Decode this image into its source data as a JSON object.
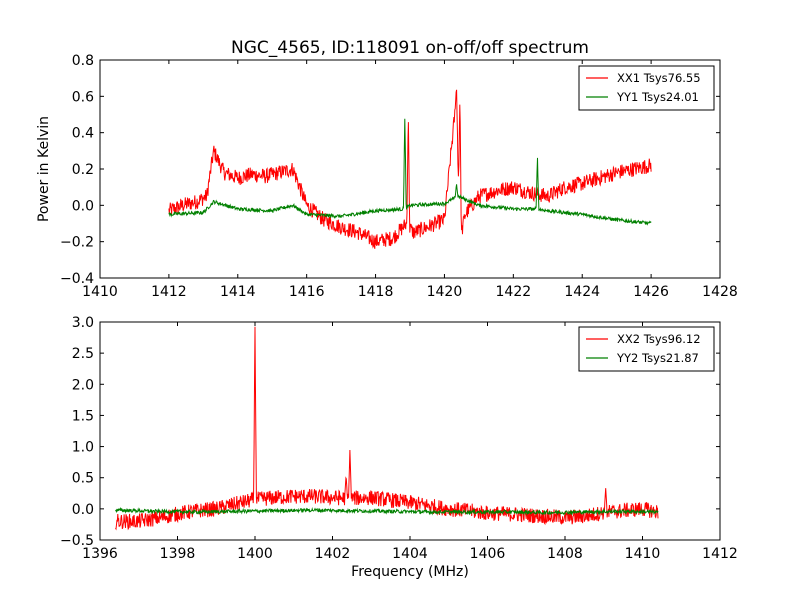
{
  "chart_data": [
    {
      "type": "line",
      "title": "NGC_4565, ID:118091 on-off/off spectrum",
      "xlabel": "",
      "ylabel": "Power in Kelvin",
      "xlim": [
        1410,
        1428
      ],
      "ylim": [
        -0.4,
        0.8
      ],
      "xticks": [
        1410,
        1412,
        1414,
        1416,
        1418,
        1420,
        1422,
        1424,
        1426,
        1428
      ],
      "yticks": [
        -0.4,
        -0.2,
        0.0,
        0.2,
        0.4,
        0.6,
        0.8
      ],
      "xtick_labels": [
        "1410",
        "1412",
        "1414",
        "1416",
        "1418",
        "1420",
        "1422",
        "1424",
        "1426",
        "1428"
      ],
      "ytick_labels": [
        "−0.4",
        "−0.2",
        "0.0",
        "0.2",
        "0.4",
        "0.6",
        "0.8"
      ],
      "grid": false,
      "legend_position": "top-right",
      "series": [
        {
          "name": "XX1 Tsys76.55",
          "color": "#ff0000",
          "x": [
            1412.0,
            1412.4,
            1412.8,
            1413.1,
            1413.3,
            1413.6,
            1414.0,
            1414.4,
            1414.8,
            1415.2,
            1415.6,
            1416.0,
            1416.5,
            1417.0,
            1417.5,
            1418.0,
            1418.5,
            1418.9,
            1419.1,
            1419.5,
            1420.0,
            1420.35,
            1420.45,
            1420.6,
            1421.0,
            1421.5,
            1422.0,
            1422.5,
            1423.0,
            1423.5,
            1424.0,
            1424.5,
            1425.0,
            1425.5,
            1426.0
          ],
          "y": [
            -0.03,
            0.0,
            0.02,
            0.05,
            0.3,
            0.18,
            0.15,
            0.17,
            0.16,
            0.18,
            0.2,
            0.0,
            -0.08,
            -0.12,
            -0.15,
            -0.2,
            -0.18,
            -0.1,
            -0.15,
            -0.12,
            -0.08,
            0.6,
            -0.2,
            -0.05,
            0.05,
            0.08,
            0.1,
            0.07,
            0.05,
            0.1,
            0.12,
            0.15,
            0.18,
            0.2,
            0.22
          ],
          "spikes": [
            [
              1418.95,
              0.52
            ],
            [
              1420.35,
              0.66
            ],
            [
              1420.45,
              0.62
            ]
          ]
        },
        {
          "name": "YY1 Tsys24.01",
          "color": "#008000",
          "x": [
            1412.0,
            1413.0,
            1413.3,
            1414.0,
            1415.0,
            1415.6,
            1416.0,
            1417.0,
            1418.0,
            1418.85,
            1419.0,
            1420.0,
            1420.4,
            1421.0,
            1422.0,
            1422.7,
            1423.0,
            1424.0,
            1425.0,
            1426.0
          ],
          "y": [
            -0.05,
            -0.04,
            0.02,
            -0.02,
            -0.03,
            0.0,
            -0.05,
            -0.06,
            -0.03,
            -0.02,
            0.0,
            0.01,
            0.05,
            0.0,
            -0.02,
            -0.02,
            -0.03,
            -0.05,
            -0.08,
            -0.1
          ],
          "spikes": [
            [
              1418.85,
              0.5
            ],
            [
              1420.35,
              0.12
            ],
            [
              1422.7,
              0.27
            ]
          ]
        }
      ]
    },
    {
      "type": "line",
      "title": "",
      "xlabel": "Frequency (MHz)",
      "ylabel": "",
      "xlim": [
        1396,
        1412
      ],
      "ylim": [
        -0.5,
        3.0
      ],
      "xticks": [
        1396,
        1398,
        1400,
        1402,
        1404,
        1406,
        1408,
        1410,
        1412
      ],
      "yticks": [
        -0.5,
        0.0,
        0.5,
        1.0,
        1.5,
        2.0,
        2.5,
        3.0
      ],
      "xtick_labels": [
        "1396",
        "1398",
        "1400",
        "1402",
        "1404",
        "1406",
        "1408",
        "1410",
        "1412"
      ],
      "ytick_labels": [
        "−0.5",
        "0.0",
        "0.5",
        "1.0",
        "1.5",
        "2.0",
        "2.5",
        "3.0"
      ],
      "grid": false,
      "legend_position": "top-right",
      "series": [
        {
          "name": "XX2 Tsys96.12",
          "color": "#ff0000",
          "x": [
            1396.4,
            1397.0,
            1397.5,
            1398.0,
            1398.5,
            1399.0,
            1399.5,
            1400.0,
            1400.5,
            1401.0,
            1401.5,
            1402.0,
            1402.5,
            1403.0,
            1403.5,
            1404.0,
            1404.5,
            1405.0,
            1405.5,
            1406.0,
            1406.5,
            1407.0,
            1407.5,
            1408.0,
            1408.5,
            1409.0,
            1409.5,
            1410.0,
            1410.4
          ],
          "y": [
            -0.2,
            -0.2,
            -0.15,
            -0.08,
            -0.03,
            0.0,
            0.08,
            0.15,
            0.18,
            0.2,
            0.2,
            0.18,
            0.17,
            0.18,
            0.14,
            0.1,
            0.05,
            0.0,
            -0.03,
            -0.07,
            -0.08,
            -0.1,
            -0.12,
            -0.14,
            -0.12,
            -0.06,
            -0.03,
            0.0,
            -0.05
          ],
          "spikes": [
            [
              1400.0,
              2.95
            ],
            [
              1402.35,
              0.55
            ],
            [
              1402.45,
              0.95
            ],
            [
              1409.05,
              0.35
            ]
          ]
        },
        {
          "name": "YY2 Tsys21.87",
          "color": "#008000",
          "x": [
            1396.4,
            1397.5,
            1398.5,
            1399.5,
            1400.5,
            1401.5,
            1402.5,
            1403.5,
            1404.5,
            1405.5,
            1406.5,
            1407.5,
            1408.5,
            1409.5,
            1410.4
          ],
          "y": [
            -0.02,
            -0.04,
            -0.05,
            -0.04,
            -0.03,
            -0.02,
            -0.03,
            -0.04,
            -0.05,
            -0.05,
            -0.05,
            -0.06,
            -0.05,
            -0.04,
            -0.05
          ],
          "spikes": []
        }
      ]
    }
  ]
}
